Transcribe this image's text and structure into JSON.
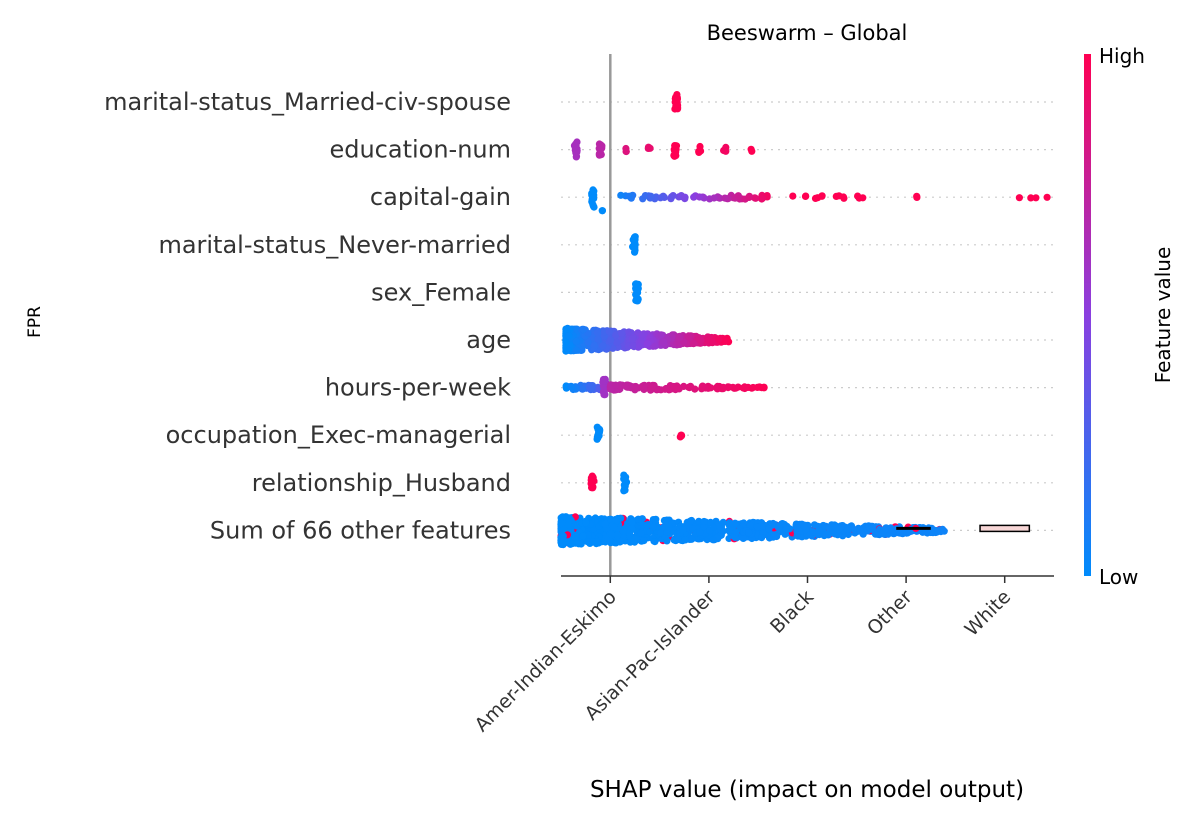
{
  "chart_data": {
    "type": "scatter",
    "subtype": "beeswarm",
    "title": "Beeswarm – Global",
    "side_label": "FPR",
    "xlabel": "SHAP value (impact on model output)",
    "x_tick_labels": [
      "Amer-Indian-Eskimo",
      "Asian-Pac-Islander",
      "Black",
      "Other",
      "White"
    ],
    "xlim": [
      -0.5,
      4.5
    ],
    "x_ticks": [
      0,
      1,
      2,
      3,
      4
    ],
    "base_line_x": 0,
    "colorbar": {
      "label": "Feature value",
      "high": "High",
      "low": "Low",
      "low_color": "#008bfb",
      "high_color": "#ff0052"
    },
    "features": [
      {
        "name": "marital-status_Married-civ-spouse",
        "groups": [
          {
            "x": 0.67,
            "spread": 0,
            "n": 18,
            "vspan": 0.35,
            "c": 1.0
          }
        ]
      },
      {
        "name": "education-num",
        "groups": [
          {
            "x": -0.35,
            "n": 18,
            "vspan": 0.36,
            "c": 0.62
          },
          {
            "x": -0.1,
            "n": 12,
            "vspan": 0.28,
            "c": 0.7
          },
          {
            "x": 0.15,
            "n": 3,
            "vspan": 0.1,
            "c": 0.85
          },
          {
            "x": 0.4,
            "n": 3,
            "vspan": 0.1,
            "c": 0.9
          },
          {
            "x": 0.66,
            "n": 12,
            "vspan": 0.3,
            "c": 1.0
          },
          {
            "x": 0.91,
            "n": 4,
            "vspan": 0.14,
            "c": 1.0
          },
          {
            "x": 1.16,
            "n": 3,
            "vspan": 0.1,
            "c": 0.95
          },
          {
            "x": 1.42,
            "n": 2,
            "vspan": 0.08,
            "c": 1.0
          }
        ]
      },
      {
        "name": "capital-gain",
        "groups": [
          {
            "x": -0.18,
            "n": 14,
            "vspan": 0.42,
            "c": 0.0
          },
          {
            "x": -0.08,
            "n": 2,
            "vspan": 0.05,
            "c": 0.0,
            "dy": 0.3
          },
          {
            "x": 0.1,
            "x2": 1.6,
            "n": 60,
            "vspan": 0.08,
            "c": 0.05,
            "c2": 0.95
          },
          {
            "x": 1.85,
            "x2": 2.6,
            "n": 14,
            "vspan": 0.06,
            "c": 1.0,
            "c2": 1.0
          },
          {
            "x": 3.1,
            "n": 2,
            "vspan": 0.05,
            "c": 1.0
          },
          {
            "x": 4.0,
            "x2": 4.45,
            "n": 4,
            "vspan": 0.05,
            "c": 1.0,
            "c2": 1.0
          }
        ]
      },
      {
        "name": "marital-status_Never-married",
        "groups": [
          {
            "x": 0.24,
            "n": 16,
            "vspan": 0.38,
            "c": 0.0
          }
        ]
      },
      {
        "name": "sex_Female",
        "groups": [
          {
            "x": 0.27,
            "n": 16,
            "vspan": 0.38,
            "c": 0.0
          }
        ]
      },
      {
        "name": "age",
        "groups": [
          {
            "x": -0.45,
            "x2": 1.2,
            "n": 700,
            "vspan": 0.5,
            "c": 0.0,
            "c2": 1.0,
            "taper": true
          }
        ]
      },
      {
        "name": "hours-per-week",
        "groups": [
          {
            "x": -0.45,
            "x2": -0.1,
            "n": 40,
            "vspan": 0.1,
            "c": 0.0,
            "c2": 0.3
          },
          {
            "x": -0.06,
            "n": 14,
            "vspan": 0.36,
            "c": 0.6
          },
          {
            "x": 0.0,
            "x2": 1.6,
            "n": 120,
            "vspan": 0.14,
            "c": 0.7,
            "c2": 1.0,
            "taper": true
          }
        ]
      },
      {
        "name": "occupation_Exec-managerial",
        "groups": [
          {
            "x": -0.12,
            "n": 14,
            "vspan": 0.34,
            "c": 0.0
          },
          {
            "x": 0.72,
            "n": 4,
            "vspan": 0.1,
            "c": 1.0
          }
        ]
      },
      {
        "name": "relationship_Husband",
        "groups": [
          {
            "x": -0.18,
            "n": 14,
            "vspan": 0.34,
            "c": 1.0
          },
          {
            "x": 0.15,
            "n": 14,
            "vspan": 0.34,
            "c": 0.0
          }
        ]
      },
      {
        "name": "Sum of 66 other features",
        "groups": [
          {
            "x": -0.5,
            "x2": 3.4,
            "n": 1100,
            "vspan": 0.6,
            "c": 0.0,
            "c2": 0.05,
            "taper": true,
            "sprinkle": 0.04
          }
        ]
      }
    ],
    "box_marker": {
      "feature_index": 9,
      "x1": 3.75,
      "x2": 4.25
    },
    "whisker": {
      "feature_index": 9,
      "x1": 2.9,
      "x2": 3.25
    }
  }
}
